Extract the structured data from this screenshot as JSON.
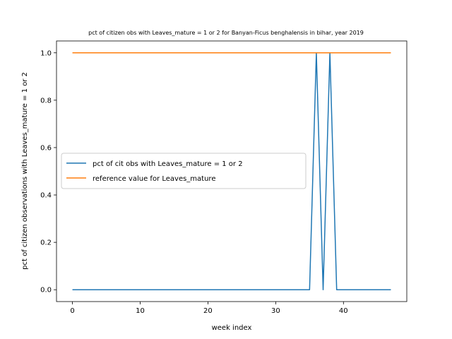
{
  "chart_data": {
    "type": "line",
    "title": "pct of citizen obs with Leaves_mature = 1 or 2 for Banyan-Ficus benghalensis in bihar, year 2019",
    "xlabel": "week index",
    "ylabel": "pct of citizen observations with Leaves_mature = 1 or 2",
    "xlim": [
      -2.35,
      49.35
    ],
    "ylim": [
      -0.05,
      1.05
    ],
    "xticks": [
      0,
      10,
      20,
      30,
      40
    ],
    "yticks": [
      0.0,
      0.2,
      0.4,
      0.6,
      0.8,
      1.0
    ],
    "xtick_labels": [
      "0",
      "10",
      "20",
      "30",
      "40"
    ],
    "ytick_labels": [
      "0.0",
      "0.2",
      "0.4",
      "0.6",
      "0.8",
      "1.0"
    ],
    "grid": false,
    "legend_position": "center-left",
    "series": [
      {
        "name": "pct of cit obs with Leaves_mature = 1 or 2",
        "color": "#1f77b4",
        "x": [
          0,
          1,
          2,
          3,
          4,
          5,
          6,
          7,
          8,
          9,
          10,
          11,
          12,
          13,
          14,
          15,
          16,
          17,
          18,
          19,
          20,
          21,
          22,
          23,
          24,
          25,
          26,
          27,
          28,
          29,
          30,
          31,
          32,
          33,
          34,
          35,
          36,
          37,
          38,
          39,
          40,
          41,
          42,
          43,
          44,
          45,
          46,
          47
        ],
        "values": [
          0,
          0,
          0,
          0,
          0,
          0,
          0,
          0,
          0,
          0,
          0,
          0,
          0,
          0,
          0,
          0,
          0,
          0,
          0,
          0,
          0,
          0,
          0,
          0,
          0,
          0,
          0,
          0,
          0,
          0,
          0,
          0,
          0,
          0,
          0,
          0,
          1,
          0,
          1,
          0,
          0,
          0,
          0,
          0,
          0,
          0,
          0,
          0
        ]
      },
      {
        "name": "reference value for Leaves_mature",
        "color": "#ff7f0e",
        "x": [
          0,
          1,
          2,
          3,
          4,
          5,
          6,
          7,
          8,
          9,
          10,
          11,
          12,
          13,
          14,
          15,
          16,
          17,
          18,
          19,
          20,
          21,
          22,
          23,
          24,
          25,
          26,
          27,
          28,
          29,
          30,
          31,
          32,
          33,
          34,
          35,
          36,
          37,
          38,
          39,
          40,
          41,
          42,
          43,
          44,
          45,
          46,
          47
        ],
        "values": [
          1,
          1,
          1,
          1,
          1,
          1,
          1,
          1,
          1,
          1,
          1,
          1,
          1,
          1,
          1,
          1,
          1,
          1,
          1,
          1,
          1,
          1,
          1,
          1,
          1,
          1,
          1,
          1,
          1,
          1,
          1,
          1,
          1,
          1,
          1,
          1,
          1,
          1,
          1,
          1,
          1,
          1,
          1,
          1,
          1,
          1,
          1,
          1
        ]
      }
    ]
  }
}
